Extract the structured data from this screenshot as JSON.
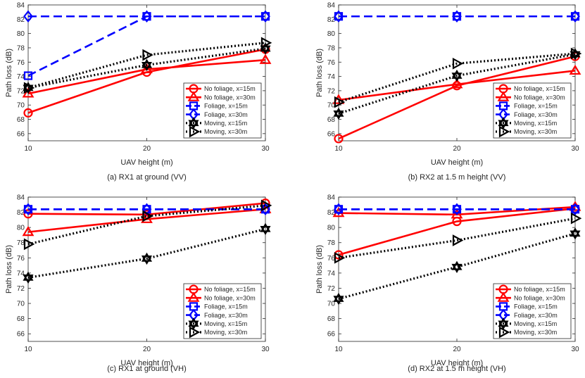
{
  "figure": {
    "colors": {
      "red": "#ff0000",
      "blue": "#0000ff",
      "black": "#000000"
    }
  },
  "chart_data": [
    {
      "type": "line",
      "title": "(a) RX1 at ground (VV)",
      "xlabel": "UAV height (m)",
      "ylabel": "Path loss (dB)",
      "x": [
        10,
        20,
        30
      ],
      "xticks": [
        "10",
        "20",
        "30"
      ],
      "yticks": [
        "66",
        "68",
        "70",
        "72",
        "74",
        "76",
        "78",
        "80",
        "82",
        "84"
      ],
      "ylim": [
        65,
        84
      ],
      "legend_position": "bottom-right",
      "series": [
        {
          "name": "No foliage, x=15m",
          "values": [
            68.9,
            74.6,
            77.8
          ]
        },
        {
          "name": "No foliage, x=30m",
          "values": [
            71.6,
            75.0,
            76.3
          ]
        },
        {
          "name": "Foliage, x=15m",
          "values": [
            74.1,
            82.4,
            82.4
          ]
        },
        {
          "name": "Foliage, x=30m",
          "values": [
            82.4,
            82.4,
            82.4
          ]
        },
        {
          "name": "Moving, x=15m",
          "values": [
            72.4,
            75.6,
            77.9
          ]
        },
        {
          "name": "Moving, x=30m",
          "values": [
            72.4,
            77.0,
            78.7
          ]
        }
      ]
    },
    {
      "type": "line",
      "title": "(b) RX2 at 1.5 m height (VV)",
      "xlabel": "UAV height (m)",
      "ylabel": "Path loss (dB)",
      "x": [
        10,
        20,
        30
      ],
      "xticks": [
        "10",
        "20",
        "30"
      ],
      "yticks": [
        "66",
        "68",
        "70",
        "72",
        "74",
        "76",
        "78",
        "80",
        "82",
        "84"
      ],
      "ylim": [
        65,
        84
      ],
      "legend_position": "bottom-right",
      "series": [
        {
          "name": "No foliage, x=15m",
          "values": [
            65.3,
            72.7,
            76.8
          ]
        },
        {
          "name": "No foliage, x=30m",
          "values": [
            70.7,
            72.9,
            74.8
          ]
        },
        {
          "name": "Foliage, x=15m",
          "values": [
            82.4,
            82.4,
            82.4
          ]
        },
        {
          "name": "Foliage, x=30m",
          "values": [
            82.4,
            82.4,
            82.4
          ]
        },
        {
          "name": "Moving, x=15m",
          "values": [
            68.8,
            74.1,
            77.1
          ]
        },
        {
          "name": "Moving, x=30m",
          "values": [
            70.4,
            75.8,
            77.2
          ]
        }
      ]
    },
    {
      "type": "line",
      "title": "(c) RX1 at ground (VH)",
      "xlabel": "UAV height (m)",
      "ylabel": "Path loss (dB)",
      "x": [
        10,
        20,
        30
      ],
      "xticks": [
        "10",
        "20",
        "30"
      ],
      "yticks": [
        "66",
        "68",
        "70",
        "72",
        "74",
        "76",
        "78",
        "80",
        "82",
        "84"
      ],
      "ylim": [
        65,
        84
      ],
      "legend_position": "bottom-right",
      "series": [
        {
          "name": "No foliage, x=15m",
          "values": [
            81.8,
            81.7,
            83.2
          ]
        },
        {
          "name": "No foliage, x=30m",
          "values": [
            79.4,
            81.1,
            82.4
          ]
        },
        {
          "name": "Foliage, x=15m",
          "values": [
            82.4,
            82.4,
            82.4
          ]
        },
        {
          "name": "Foliage, x=30m",
          "values": [
            82.4,
            82.4,
            82.4
          ]
        },
        {
          "name": "Moving, x=15m",
          "values": [
            73.4,
            75.9,
            79.8
          ]
        },
        {
          "name": "Moving, x=30m",
          "values": [
            77.8,
            81.5,
            82.9
          ]
        }
      ]
    },
    {
      "type": "line",
      "title": "(d) RX2 at 1.5 m height (VH)",
      "xlabel": "UAV height (m)",
      "ylabel": "Path loss (dB)",
      "x": [
        10,
        20,
        30
      ],
      "xticks": [
        "10",
        "20",
        "30"
      ],
      "yticks": [
        "66",
        "68",
        "70",
        "72",
        "74",
        "76",
        "78",
        "80",
        "82",
        "84"
      ],
      "ylim": [
        65,
        84
      ],
      "legend_position": "bottom-right",
      "series": [
        {
          "name": "No foliage, x=15m",
          "values": [
            76.4,
            80.8,
            82.5
          ]
        },
        {
          "name": "No foliage, x=30m",
          "values": [
            81.9,
            81.7,
            82.7
          ]
        },
        {
          "name": "Foliage, x=15m",
          "values": [
            82.4,
            82.4,
            82.4
          ]
        },
        {
          "name": "Foliage, x=30m",
          "values": [
            82.4,
            82.4,
            82.4
          ]
        },
        {
          "name": "Moving, x=15m",
          "values": [
            70.6,
            74.8,
            79.2
          ]
        },
        {
          "name": "Moving, x=30m",
          "values": [
            76.0,
            78.3,
            81.2
          ]
        }
      ]
    }
  ]
}
